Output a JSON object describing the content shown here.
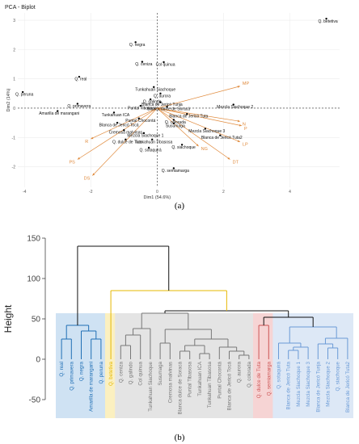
{
  "chart_data": [
    {
      "type": "scatter",
      "title": "PCA - Biplot",
      "xlabel": "Dim1 (54.6%)",
      "ylabel": "Dim2 (14%)",
      "xlim": [
        -4.2,
        5.5
      ],
      "ylim": [
        -2.7,
        3.25
      ],
      "xticks": [
        -4,
        -2,
        0,
        2,
        4
      ],
      "yticks": [
        -2,
        -1,
        0,
        1,
        2,
        3
      ],
      "grid": true,
      "point_color": "#000000",
      "vector_color": "#e08a3c",
      "points": [
        {
          "label": "Q. betetiva",
          "x": 5.1,
          "y": 3.05
        },
        {
          "label": "Q. negra",
          "x": -0.65,
          "y": 2.25
        },
        {
          "label": "Col quinua",
          "x": 0.2,
          "y": 1.57
        },
        {
          "label": "Q. ceniza",
          "x": -0.45,
          "y": 1.58
        },
        {
          "label": "Q. real",
          "x": -2.35,
          "y": 1.07
        },
        {
          "label": "Tunkahuan Siachoque",
          "x": -0.1,
          "y": 0.72
        },
        {
          "label": "Q. aurora",
          "x": 0.1,
          "y": 0.5
        },
        {
          "label": "Q. peruna",
          "x": -4.05,
          "y": 0.55
        },
        {
          "label": "Q. galindo",
          "x": -0.2,
          "y": 0.3
        },
        {
          "label": "Blanca de Jericó Tunja",
          "x": 0.1,
          "y": 0.2
        },
        {
          "label": "Q. primavera",
          "x": -2.4,
          "y": 0.15
        },
        {
          "label": "Puntal Tibasosa",
          "x": -0.5,
          "y": 0.08
        },
        {
          "label": "Blanca dulce de Soracá",
          "x": 0.3,
          "y": 0.05
        },
        {
          "label": "Mezcla Siachoque 2",
          "x": 2.3,
          "y": 0.12
        },
        {
          "label": "Amarilla de marangani",
          "x": -3.0,
          "y": -0.1
        },
        {
          "label": "Tunkahuan ICA",
          "x": -1.3,
          "y": -0.15
        },
        {
          "label": "Blanca de Jericó Tuta",
          "x": 0.9,
          "y": -0.2
        },
        {
          "label": "Puntal Chocontá",
          "x": -0.55,
          "y": -0.35
        },
        {
          "label": "Q. colorada",
          "x": 0.5,
          "y": -0.4
        },
        {
          "label": "Blanca de Jericó Tocá",
          "x": -1.2,
          "y": -0.5
        },
        {
          "label": "Susumaga",
          "x": 0.5,
          "y": -0.52
        },
        {
          "label": "Cremosa malvinas",
          "x": -1.0,
          "y": -0.75
        },
        {
          "label": "Mezcla Siachoque 3",
          "x": 1.45,
          "y": -0.7
        },
        {
          "label": "Mezcla Siachoque 1",
          "x": -0.4,
          "y": -0.85
        },
        {
          "label": "Blanca de Jericó Tuta2",
          "x": 1.9,
          "y": -0.93
        },
        {
          "label": "Q. dulce de Tuta",
          "x": -0.95,
          "y": -1.07
        },
        {
          "label": "Tunkahuan Tibasosa",
          "x": -0.15,
          "y": -1.07
        },
        {
          "label": "Q. siachoque",
          "x": 0.75,
          "y": -1.25
        },
        {
          "label": "Q. sotaquirá",
          "x": -0.25,
          "y": -1.35
        },
        {
          "label": "Q. semiamarga",
          "x": 0.5,
          "y": -2.05
        }
      ],
      "vectors": [
        {
          "label": "MP",
          "x": 2.5,
          "y": 0.75
        },
        {
          "label": "N",
          "x": 2.5,
          "y": -0.45
        },
        {
          "label": "P",
          "x": 2.55,
          "y": -0.6
        },
        {
          "label": "LP",
          "x": 2.5,
          "y": -1.15
        },
        {
          "label": "DT",
          "x": 2.2,
          "y": -1.75
        },
        {
          "label": "NG",
          "x": 1.25,
          "y": -1.3
        },
        {
          "label": "R",
          "x": -2.0,
          "y": -1.05
        },
        {
          "label": "PS",
          "x": -2.4,
          "y": -1.75
        },
        {
          "label": "DS",
          "x": -1.95,
          "y": -2.3
        }
      ]
    },
    {
      "type": "dendrogram",
      "ylabel": "Height",
      "ylim": [
        -75,
        175
      ],
      "yticks": [
        150,
        100,
        50,
        0,
        -50
      ],
      "leaves": [
        {
          "label": "Q. real",
          "cluster": 0
        },
        {
          "label": "Q. primavera",
          "cluster": 0
        },
        {
          "label": "Q. negra",
          "cluster": 0
        },
        {
          "label": "Amarilla de marangani",
          "cluster": 0
        },
        {
          "label": "Q. peruna",
          "cluster": 0
        },
        {
          "label": "Q. betetiva",
          "cluster": 1
        },
        {
          "label": "Q. ceniza",
          "cluster": 2
        },
        {
          "label": "Q. galindo",
          "cluster": 2
        },
        {
          "label": "Col quinua",
          "cluster": 2
        },
        {
          "label": "Tunkahuan Siachoque",
          "cluster": 2
        },
        {
          "label": "Susumaga",
          "cluster": 2
        },
        {
          "label": "Cremosa malvinas",
          "cluster": 2
        },
        {
          "label": "Blanca dulce de Soracá",
          "cluster": 2
        },
        {
          "label": "Puntal Tibasosa",
          "cluster": 2
        },
        {
          "label": "Tunkahuan ICA",
          "cluster": 2
        },
        {
          "label": "Tunkahuan Tibasosa",
          "cluster": 2
        },
        {
          "label": "Puntal Chocontá",
          "cluster": 2
        },
        {
          "label": "Blanca de Jericó Tocá",
          "cluster": 2
        },
        {
          "label": "Q. aurora",
          "cluster": 2
        },
        {
          "label": "Q. colorada",
          "cluster": 2
        },
        {
          "label": "Q. dulce de Tuta",
          "cluster": 3
        },
        {
          "label": "Q. semiamarga",
          "cluster": 3
        },
        {
          "label": "Q. sotaquirá",
          "cluster": 4
        },
        {
          "label": "Blanca de Jericó Tuta",
          "cluster": 4
        },
        {
          "label": "Mezcla Siachoque 1",
          "cluster": 4
        },
        {
          "label": "Mezcla Siachoque 3",
          "cluster": 4
        },
        {
          "label": "Blanca de Jericó Tunja",
          "cluster": 4
        },
        {
          "label": "Mezcla Siachoque 2",
          "cluster": 4
        },
        {
          "label": "Q. siachoque",
          "cluster": 4
        },
        {
          "label": "Blanca de Jericó Tuta2",
          "cluster": 4
        }
      ],
      "clusters": [
        {
          "color": "#1f6fb5",
          "bg": "#cfe2f3"
        },
        {
          "color": "#e6b800",
          "bg": "#fbf0c0"
        },
        {
          "color": "#777777",
          "bg": "#e4e4e4"
        },
        {
          "color": "#cc5555",
          "bg": "#f6d4d4"
        },
        {
          "color": "#6a9ad6",
          "bg": "#dde8f6"
        }
      ],
      "merges": [
        {
          "id": "a1",
          "left": 0,
          "right": 1,
          "height": 25,
          "color": 0
        },
        {
          "id": "a2",
          "left": 3,
          "right": 4,
          "height": 25,
          "color": 0
        },
        {
          "id": "a3",
          "left": 2,
          "right": "a2",
          "height": 35,
          "color": 0
        },
        {
          "id": "A",
          "left": "a1",
          "right": "a3",
          "height": 42,
          "color": 0
        },
        {
          "id": "g1",
          "left": 6,
          "right": 7,
          "height": 17,
          "color": 2
        },
        {
          "id": "g2",
          "left": "g1",
          "right": 8,
          "height": 30,
          "color": 2
        },
        {
          "id": "g3",
          "left": "g2",
          "right": 9,
          "height": 38,
          "color": 2
        },
        {
          "id": "g4",
          "left": 10,
          "right": 11,
          "height": 20,
          "color": 2
        },
        {
          "id": "g5",
          "left": 12,
          "right": 13,
          "height": 10,
          "color": 2
        },
        {
          "id": "g6",
          "left": 14,
          "right": 15,
          "height": 7,
          "color": 2
        },
        {
          "id": "g7",
          "left": "g5",
          "right": "g6",
          "height": 17,
          "color": 2
        },
        {
          "id": "g8",
          "left": 18,
          "right": 19,
          "height": 5,
          "color": 2
        },
        {
          "id": "g9",
          "left": 17,
          "right": "g8",
          "height": 10,
          "color": 2
        },
        {
          "id": "g10",
          "left": 16,
          "right": "g9",
          "height": 15,
          "color": 2
        },
        {
          "id": "g11",
          "left": "g7",
          "right": "g10",
          "height": 25,
          "color": 2
        },
        {
          "id": "g12",
          "left": "g4",
          "right": "g11",
          "height": 37,
          "color": 2
        },
        {
          "id": "G",
          "left": "g3",
          "right": "g12",
          "height": 57,
          "color": 2
        },
        {
          "id": "R",
          "left": 20,
          "right": 21,
          "height": 42,
          "color": 3
        },
        {
          "id": "b1",
          "left": 23,
          "right": 24,
          "height": 11,
          "color": 4
        },
        {
          "id": "b2",
          "left": "b1",
          "right": 25,
          "height": 15,
          "color": 4
        },
        {
          "id": "b3",
          "left": 22,
          "right": "b2",
          "height": 20,
          "color": 4
        },
        {
          "id": "b4",
          "left": 27,
          "right": 28,
          "height": 14,
          "color": 4
        },
        {
          "id": "b5",
          "left": 26,
          "right": "b4",
          "height": 19,
          "color": 4
        },
        {
          "id": "b6",
          "left": "b5",
          "right": 29,
          "height": 26,
          "color": 4
        },
        {
          "id": "B",
          "left": "b3",
          "right": "b6",
          "height": 40,
          "color": 4
        },
        {
          "id": "n1",
          "left": "R",
          "right": "B",
          "height": 52,
          "color": null
        },
        {
          "id": "n2",
          "left": "G",
          "right": "n1",
          "height": 60,
          "color": null
        },
        {
          "id": "n3",
          "left": 5,
          "right": "n2",
          "height": 85,
          "color": 1
        },
        {
          "id": "root",
          "left": "A",
          "right": "n3",
          "height": 140,
          "color": null
        }
      ]
    }
  ],
  "panels": {
    "a": "(a)",
    "b": "(b)"
  }
}
